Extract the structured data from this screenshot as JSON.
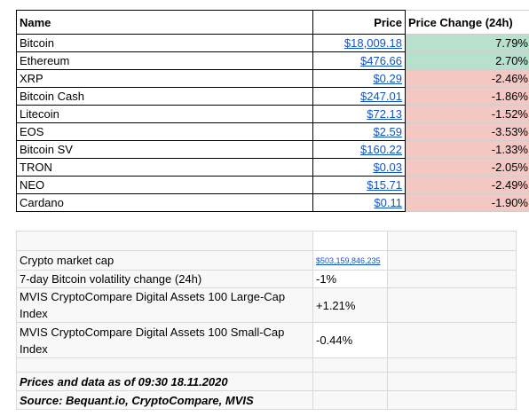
{
  "table": {
    "headers": {
      "name": "Name",
      "price": "Price",
      "change": "Price Change (24h)"
    },
    "rows": [
      {
        "name": "Bitcoin",
        "price": "$18,009.18",
        "change": "7.79%",
        "status": "positive"
      },
      {
        "name": "Ethereum",
        "price": "$476.66",
        "change": "2.70%",
        "status": "positive"
      },
      {
        "name": "XRP",
        "price": "$0.29",
        "change": "-2.46%",
        "status": "negative"
      },
      {
        "name": "Bitcoin Cash",
        "price": "$247.01",
        "change": "-1.86%",
        "status": "negative"
      },
      {
        "name": "Litecoin",
        "price": "$72.13",
        "change": "-1.52%",
        "status": "negative"
      },
      {
        "name": "EOS",
        "price": "$2.59",
        "change": "-3.53%",
        "status": "negative"
      },
      {
        "name": "Bitcoin SV",
        "price": "$160.22",
        "change": "-1.33%",
        "status": "negative"
      },
      {
        "name": "TRON",
        "price": "$0.03",
        "change": "-2.05%",
        "status": "negative"
      },
      {
        "name": "NEO",
        "price": "$15.71",
        "change": "-2.49%",
        "status": "negative"
      },
      {
        "name": "Cardano",
        "price": "$0.11",
        "change": "-1.90%",
        "status": "negative"
      }
    ]
  },
  "stats": {
    "market_cap_label": "Crypto market cap",
    "market_cap_value": "$503,159,846,235",
    "volatility_label": "7-day Bitcoin volatility change (24h)",
    "volatility_value": "-1%",
    "large_cap_label_line1": "MVIS CryptoCompare Digital Assets 100 Large-Cap",
    "large_cap_label_line2": "Index",
    "large_cap_value": "+1.21%",
    "small_cap_label_line1": "MVIS CryptoCompare Digital Assets 100 Small-Cap",
    "small_cap_label_line2": "Index",
    "small_cap_value": "-0.44%",
    "footer_date": "Prices and data as of 09:30 18.11.2020",
    "footer_source": "Source: Bequant.io, CryptoCompare, MVIS"
  },
  "colors": {
    "positive": "#b7e1cd",
    "negative": "#f4c7c3",
    "link": "#1155cc"
  }
}
